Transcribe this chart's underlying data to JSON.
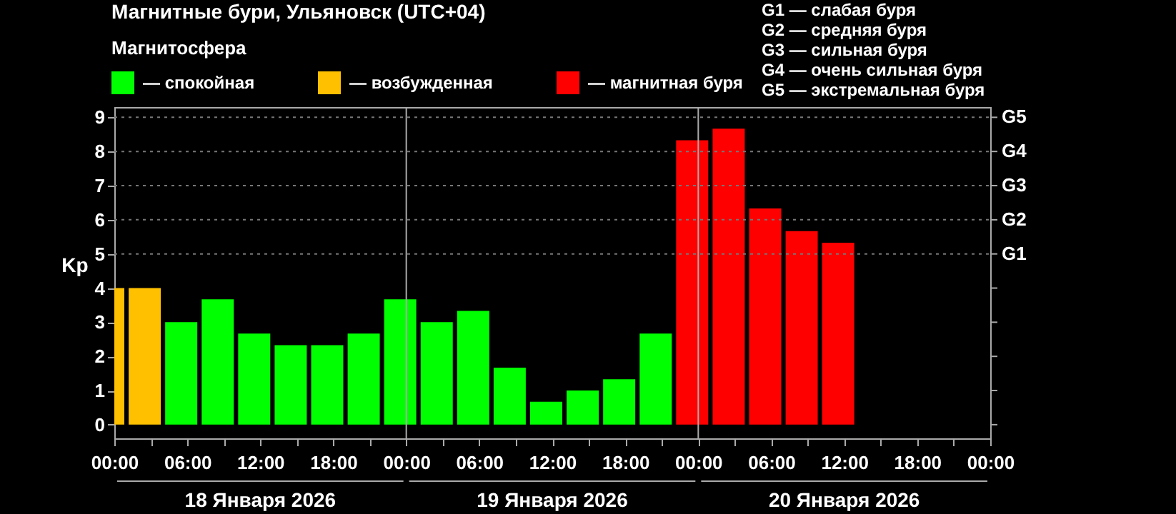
{
  "chart_data": {
    "type": "bar",
    "title": "Магнитные бури, Ульяновск (UTC+04)",
    "ylabel": "Kp",
    "legend_title": "Магнитосфера",
    "legend": "top left",
    "series": [
      {
        "name": "— спокойная",
        "color": "#00ff00",
        "x": [
          "2026-01-18T05:30",
          "2026-01-18T08:30",
          "2026-01-18T11:30",
          "2026-01-18T14:30",
          "2026-01-18T17:30",
          "2026-01-18T20:30",
          "2026-01-18T23:30",
          "2026-01-19T02:30",
          "2026-01-19T05:30",
          "2026-01-19T08:30",
          "2026-01-19T11:30",
          "2026-01-19T14:30",
          "2026-01-19T17:30",
          "2026-01-19T20:30"
        ],
        "values": [
          3,
          3.67,
          2.67,
          2.33,
          2.33,
          2.67,
          3.67,
          3,
          3.33,
          1.67,
          0.67,
          1,
          1.33,
          2.67
        ]
      },
      {
        "name": "— возбужденная",
        "color": "#ffc000",
        "x": [
          "2026-01-18T00:24",
          "2026-01-18T02:30"
        ],
        "values": [
          4,
          4
        ]
      },
      {
        "name": "— магнитная буря",
        "color": "#ff0000",
        "x": [
          "2026-01-19T23:30",
          "2026-01-20T02:30",
          "2026-01-20T05:30",
          "2026-01-20T08:30",
          "2026-01-20T11:30"
        ],
        "values": [
          8.33,
          8.67,
          6.33,
          5.67,
          5.33
        ]
      }
    ],
    "xlim": [
      "2026-01-18T00:00",
      "2026-01-21T00:00"
    ],
    "xticks": [
      {
        "value": "2026-01-18T00:00",
        "label": "00:00"
      },
      {
        "value": "2026-01-18T03:00",
        "label": null
      },
      {
        "value": "2026-01-18T06:00",
        "label": "06:00"
      },
      {
        "value": "2026-01-18T09:00",
        "label": null
      },
      {
        "value": "2026-01-18T12:00",
        "label": "12:00"
      },
      {
        "value": "2026-01-18T15:00",
        "label": null
      },
      {
        "value": "2026-01-18T18:00",
        "label": "18:00"
      },
      {
        "value": "2026-01-18T21:00",
        "label": null
      },
      {
        "value": "2026-01-19T00:00",
        "label": "00:00"
      },
      {
        "value": "2026-01-19T03:00",
        "label": null
      },
      {
        "value": "2026-01-19T06:00",
        "label": "06:00"
      },
      {
        "value": "2026-01-19T09:00",
        "label": null
      },
      {
        "value": "2026-01-19T12:00",
        "label": "12:00"
      },
      {
        "value": "2026-01-19T15:00",
        "label": null
      },
      {
        "value": "2026-01-19T18:00",
        "label": "18:00"
      },
      {
        "value": "2026-01-19T21:00",
        "label": null
      },
      {
        "value": "2026-01-20T00:00",
        "label": "00:00"
      },
      {
        "value": "2026-01-20T03:00",
        "label": null
      },
      {
        "value": "2026-01-20T06:00",
        "label": "06:00"
      },
      {
        "value": "2026-01-20T09:00",
        "label": null
      },
      {
        "value": "2026-01-20T12:00",
        "label": "12:00"
      },
      {
        "value": "2026-01-20T15:00",
        "label": null
      },
      {
        "value": "2026-01-20T18:00",
        "label": "18:00"
      },
      {
        "value": "2026-01-20T21:00",
        "label": null
      },
      {
        "value": "2026-01-21T00:00",
        "label": "00:00"
      }
    ],
    "ylim": [
      -0.4,
      9.3
    ],
    "yticks": [
      0,
      1,
      2,
      3,
      4,
      5,
      6,
      7,
      8,
      9
    ],
    "ref_lines": [
      {
        "axis": "x",
        "value": "2026-01-19T00:00",
        "color": "#aaaaaa",
        "line_style": "solid"
      },
      {
        "axis": "x",
        "value": "2026-01-20T00:00",
        "color": "#aaaaaa",
        "line_style": "solid"
      },
      {
        "axis": "y",
        "value": 5,
        "label": "G1",
        "color": "#777777",
        "line_style": "dotted"
      },
      {
        "axis": "y",
        "value": 6,
        "label": "G2",
        "color": "#777777",
        "line_style": "dotted"
      },
      {
        "axis": "y",
        "value": 7,
        "label": "G3",
        "color": "#777777",
        "line_style": "dotted"
      },
      {
        "axis": "y",
        "value": 8,
        "label": "G4",
        "color": "#777777",
        "line_style": "dotted"
      },
      {
        "axis": "y",
        "value": 9,
        "label": "G5",
        "color": "#777777",
        "line_style": "dotted"
      }
    ],
    "annotations": [
      "G1 — слабая буря",
      "G2 — средняя буря",
      "G3 — сильная буря",
      "G4 — очень сильная буря",
      "G5 — экстремальная буря",
      "18 Января 2026",
      "19 Января 2026",
      "20 Января 2026"
    ]
  }
}
